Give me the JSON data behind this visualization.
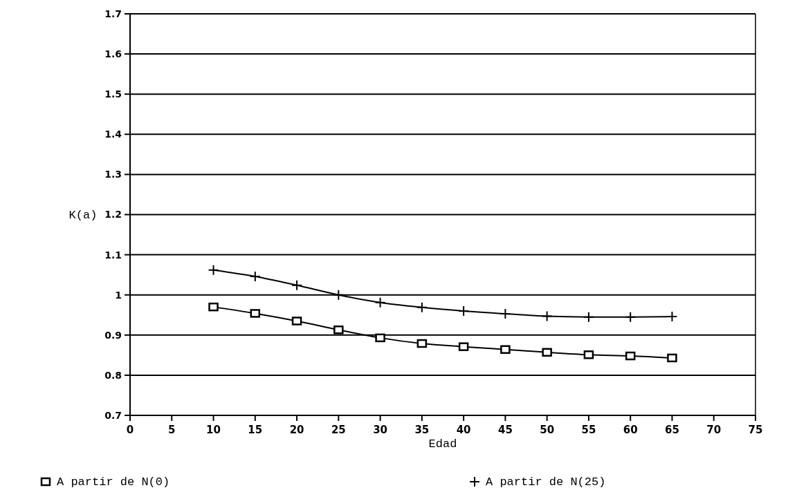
{
  "chart_data": {
    "type": "line",
    "xlabel": "Edad",
    "ylabel": "K(a)",
    "x": [
      10,
      15,
      20,
      25,
      30,
      35,
      40,
      45,
      50,
      55,
      60,
      65
    ],
    "series": [
      {
        "name": "A partir de N(0)",
        "color": "#000000",
        "marker": "square",
        "values": [
          0.97,
          0.954,
          0.935,
          0.913,
          0.893,
          0.879,
          0.871,
          0.864,
          0.857,
          0.851,
          0.848,
          0.843
        ]
      },
      {
        "name": "A partir de N(25)",
        "color": "#000000",
        "marker": "cross",
        "values": [
          1.062,
          1.046,
          1.024,
          1.0,
          0.981,
          0.969,
          0.96,
          0.953,
          0.947,
          0.945,
          0.945,
          0.946
        ]
      }
    ],
    "xlim": [
      0,
      75
    ],
    "xticks": [
      0,
      5,
      10,
      15,
      20,
      25,
      30,
      35,
      40,
      45,
      50,
      55,
      60,
      65,
      70,
      75
    ],
    "ylim": [
      0.7,
      1.7
    ],
    "yticks": [
      0.7,
      0.8,
      0.9,
      1,
      1.1,
      1.2,
      1.3,
      1.4,
      1.5,
      1.6,
      1.7
    ],
    "grid": "y",
    "legend": "bottom"
  }
}
